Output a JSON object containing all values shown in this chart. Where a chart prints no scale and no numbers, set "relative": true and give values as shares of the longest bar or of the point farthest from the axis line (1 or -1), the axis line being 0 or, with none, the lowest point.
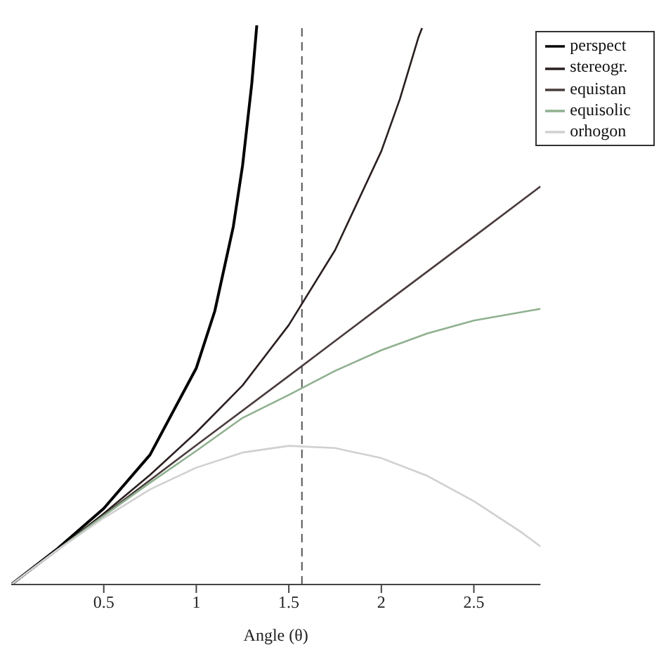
{
  "chart_data": {
    "type": "line",
    "relative": true,
    "xlabel": "Angle (θ)",
    "xlim": [
      0,
      2.86
    ],
    "xticks": [
      0.5,
      1,
      1.5,
      2,
      2.5
    ],
    "legend": "top right",
    "grid": false,
    "marker": "none",
    "line_style": "solid",
    "ref_lines": [
      {
        "axis": "x",
        "value": 1.5708,
        "line_style": "dashed",
        "color": "#555555"
      }
    ],
    "series": [
      {
        "name": "perspect",
        "color": "#000000",
        "x": [
          0,
          0.25,
          0.5,
          0.75,
          1,
          1.1,
          1.2,
          1.25,
          1.3,
          1.327
        ],
        "values": [
          0,
          0.064,
          0.136,
          0.232,
          0.387,
          0.489,
          0.64,
          0.749,
          0.896,
          1
        ]
      },
      {
        "name": "stereogr.",
        "color": "#2a1f1f",
        "x": [
          0,
          0.25,
          0.5,
          0.75,
          1,
          1.25,
          1.5,
          1.75,
          2,
          2.1,
          2.2,
          2.22
        ],
        "values": [
          0,
          0.062,
          0.127,
          0.196,
          0.272,
          0.356,
          0.464,
          0.598,
          0.775,
          0.868,
          0.978,
          0.995
        ]
      },
      {
        "name": "equistan",
        "color": "#4a3c3c",
        "x": [
          0,
          0.5,
          1,
          1.5,
          2,
          2.5,
          2.86
        ],
        "values": [
          0,
          0.124,
          0.249,
          0.373,
          0.498,
          0.622,
          0.712
        ]
      },
      {
        "name": "equisolic",
        "color": "#8fb08f",
        "x": [
          0,
          0.25,
          0.5,
          0.75,
          1,
          1.25,
          1.5,
          1.75,
          2,
          2.25,
          2.5,
          2.86
        ],
        "values": [
          0,
          0.062,
          0.123,
          0.182,
          0.239,
          0.298,
          0.339,
          0.382,
          0.419,
          0.449,
          0.472,
          0.493
        ]
      },
      {
        "name": "orhogon",
        "color": "#d0d0d0",
        "x": [
          0,
          0.25,
          0.5,
          0.75,
          1,
          1.25,
          1.5,
          1.75,
          2,
          2.25,
          2.5,
          2.75,
          2.86
        ],
        "values": [
          0,
          0.062,
          0.119,
          0.17,
          0.209,
          0.236,
          0.248,
          0.244,
          0.226,
          0.194,
          0.149,
          0.095,
          0.068
        ]
      }
    ]
  }
}
